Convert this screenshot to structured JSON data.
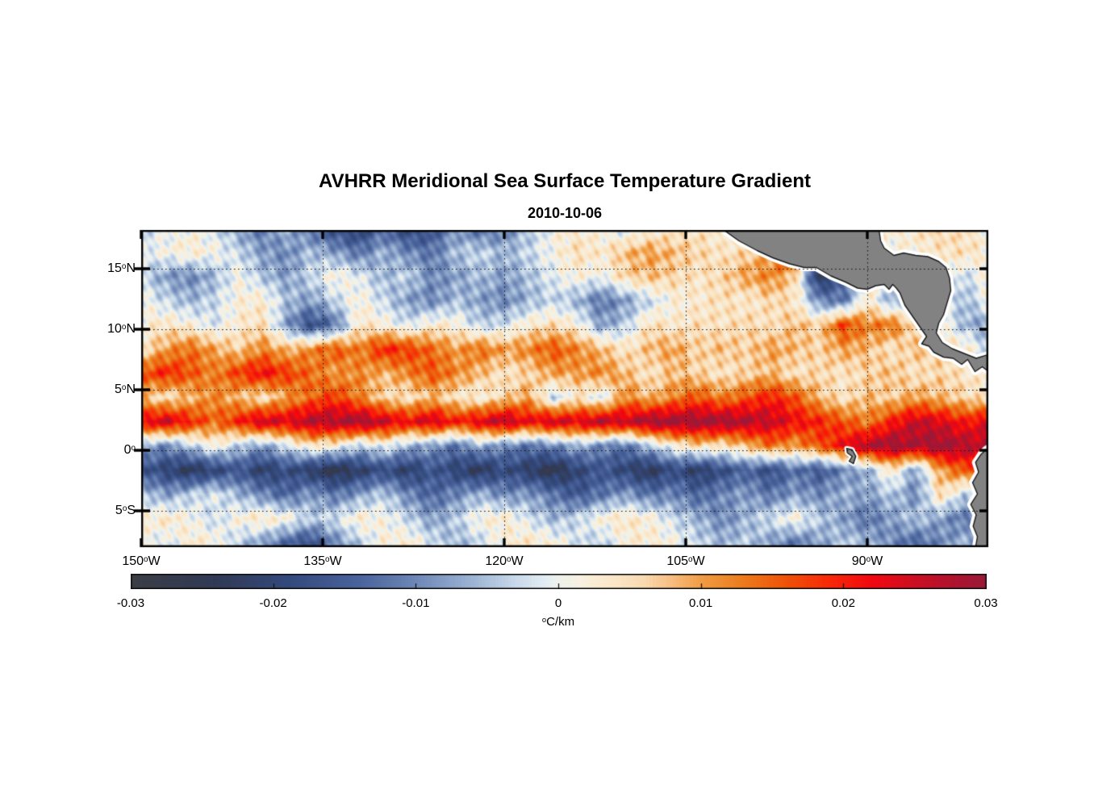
{
  "page": {
    "title": "AVHRR Meridional Sea Surface Temperature Gradient",
    "date": "2010-10-06"
  },
  "chart_data": {
    "type": "heatmap",
    "title": "AVHRR Meridional Sea Surface Temperature Gradient",
    "subtitle": "2010-10-06",
    "deg_sup": "o",
    "x_axis": {
      "ticks": [
        {
          "num": "150",
          "hem": "W",
          "lon": -150
        },
        {
          "num": "135",
          "hem": "W",
          "lon": -135
        },
        {
          "num": "120",
          "hem": "W",
          "lon": -120
        },
        {
          "num": "105",
          "hem": "W",
          "lon": -105
        },
        {
          "num": "90",
          "hem": "W",
          "lon": -90
        }
      ]
    },
    "y_axis": {
      "ticks": [
        {
          "num": "15",
          "hem": "N",
          "lat": 15
        },
        {
          "num": "10",
          "hem": "N",
          "lat": 10
        },
        {
          "num": "5",
          "hem": "N",
          "lat": 5
        },
        {
          "num": "0",
          "hem": "",
          "lat": 0
        },
        {
          "num": "5",
          "hem": "S",
          "lat": -5
        }
      ]
    },
    "lon_range": [
      -150,
      -80
    ],
    "lat_range": [
      18.2,
      -8.0
    ],
    "grid": {
      "lon_start": -150,
      "lon_step": 2,
      "lat_start": 18,
      "lat_step": -2,
      "unit": "C/km",
      "values": [
        [
          -0.003,
          -0.001,
          0.001,
          -0.002,
          -0.008,
          -0.012,
          -0.005,
          -0.013,
          -0.019,
          -0.021,
          -0.014,
          -0.02,
          -0.017,
          -0.009,
          -0.014,
          -0.011,
          -0.005,
          0.001,
          0.003,
          0.001,
          -0.003,
          0.002,
          0.003,
          0.004,
          0.002,
          0.001,
          0.002,
          0.001,
          0.002,
          0.001,
          0.003,
          0.002,
          0.004,
          0.006,
          0.004,
          0.002
        ],
        [
          -0.001,
          0.001,
          0.003,
          0.001,
          -0.003,
          -0.008,
          -0.01,
          -0.005,
          -0.008,
          -0.012,
          -0.006,
          -0.01,
          -0.012,
          -0.005,
          -0.003,
          -0.006,
          -0.003,
          0.001,
          0.005,
          0.003,
          0.008,
          0.01,
          0.008,
          0.006,
          0.004,
          0.006,
          0.01,
          0.028,
          -0.028,
          0.002,
          0.002,
          0.001,
          0.002,
          0.004,
          0.005,
          0.002
        ],
        [
          -0.003,
          -0.008,
          -0.01,
          -0.006,
          0.001,
          -0.005,
          -0.008,
          -0.003,
          0.002,
          -0.001,
          -0.006,
          -0.003,
          -0.01,
          -0.008,
          -0.005,
          -0.008,
          -0.005,
          -0.001,
          0.002,
          0.0,
          0.006,
          0.008,
          0.006,
          0.004,
          0.006,
          0.01,
          0.012,
          0.006,
          -0.024,
          -0.014,
          0.002,
          0.001,
          0.001,
          0.002,
          -0.003,
          0.002
        ],
        [
          0.001,
          -0.003,
          -0.006,
          -0.003,
          0.002,
          0.003,
          -0.005,
          -0.008,
          -0.003,
          0.002,
          -0.003,
          -0.008,
          -0.01,
          -0.005,
          -0.008,
          -0.01,
          -0.006,
          -0.003,
          -0.006,
          -0.012,
          -0.008,
          -0.003,
          0.002,
          0.003,
          0.005,
          0.003,
          0.006,
          0.004,
          -0.01,
          -0.012,
          0.004,
          -0.008,
          0.002,
          0.002,
          -0.006,
          0.001
        ],
        [
          0.002,
          0.004,
          0.002,
          -0.002,
          0.003,
          0.005,
          -0.008,
          -0.018,
          -0.012,
          0.004,
          0.002,
          -0.002,
          0.003,
          0.002,
          -0.004,
          -0.002,
          0.003,
          0.005,
          0.002,
          -0.008,
          -0.004,
          0.005,
          0.003,
          0.005,
          0.004,
          0.006,
          0.004,
          0.008,
          0.006,
          0.018,
          0.012,
          0.014,
          0.004,
          0.002,
          -0.006,
          -0.008
        ],
        [
          0.004,
          0.01,
          0.014,
          0.01,
          0.006,
          0.012,
          0.008,
          0.012,
          0.016,
          0.012,
          0.02,
          0.018,
          0.014,
          0.01,
          0.014,
          0.01,
          0.012,
          0.016,
          0.012,
          0.008,
          0.004,
          0.008,
          0.01,
          0.006,
          0.008,
          0.006,
          0.01,
          0.008,
          0.006,
          0.01,
          0.008,
          0.004,
          0.008,
          0.006,
          0.004,
          -0.004
        ],
        [
          0.016,
          0.02,
          0.016,
          0.012,
          0.018,
          0.022,
          0.018,
          0.014,
          0.01,
          0.012,
          0.008,
          0.012,
          0.016,
          0.012,
          0.008,
          0.004,
          0.006,
          0.01,
          0.01,
          0.012,
          0.008,
          0.004,
          0.008,
          0.006,
          0.004,
          0.006,
          0.008,
          0.004,
          0.006,
          0.004,
          0.006,
          0.008,
          0.004,
          0.006,
          0.004,
          0.002
        ],
        [
          0.008,
          0.004,
          0.008,
          0.012,
          0.008,
          0.004,
          0.01,
          0.014,
          0.018,
          0.012,
          0.006,
          0.004,
          0.008,
          0.004,
          0.002,
          0.006,
          0.01,
          -0.004,
          0.004,
          -0.002,
          0.012,
          0.008,
          0.012,
          0.016,
          0.012,
          0.016,
          0.02,
          0.016,
          0.008,
          0.004,
          0.008,
          0.006,
          0.01,
          0.008,
          0.006,
          0.004
        ],
        [
          0.022,
          0.026,
          0.02,
          0.014,
          0.02,
          0.026,
          0.024,
          0.028,
          0.028,
          0.03,
          0.026,
          0.022,
          0.026,
          0.02,
          0.024,
          0.028,
          0.022,
          0.026,
          0.024,
          0.028,
          0.026,
          0.03,
          0.03,
          0.03,
          0.03,
          0.028,
          0.026,
          0.022,
          0.02,
          0.016,
          0.012,
          0.02,
          0.026,
          0.024,
          0.02,
          0.024
        ],
        [
          -0.006,
          -0.01,
          -0.004,
          0.002,
          -0.004,
          -0.008,
          -0.002,
          0.004,
          0.002,
          -0.004,
          0.0,
          -0.006,
          -0.008,
          -0.012,
          -0.006,
          -0.01,
          -0.012,
          -0.01,
          -0.006,
          -0.01,
          -0.012,
          -0.004,
          0.002,
          0.006,
          0.004,
          0.008,
          0.014,
          0.01,
          0.016,
          0.022,
          0.028,
          0.03,
          0.028,
          0.03,
          0.028,
          0.026
        ],
        [
          -0.016,
          -0.02,
          -0.024,
          -0.02,
          -0.016,
          -0.022,
          -0.018,
          -0.022,
          -0.026,
          -0.022,
          -0.018,
          -0.022,
          -0.016,
          -0.02,
          -0.024,
          -0.018,
          -0.022,
          -0.026,
          -0.02,
          -0.016,
          -0.02,
          -0.024,
          -0.018,
          -0.022,
          -0.018,
          -0.014,
          -0.018,
          -0.012,
          -0.016,
          -0.01,
          -0.006,
          0.004,
          -0.008,
          0.01,
          0.016,
          0.012
        ],
        [
          -0.004,
          -0.008,
          -0.004,
          -0.001,
          -0.006,
          -0.01,
          -0.014,
          -0.008,
          -0.012,
          -0.008,
          -0.004,
          -0.01,
          -0.014,
          -0.01,
          -0.006,
          -0.01,
          -0.008,
          -0.012,
          -0.016,
          -0.012,
          -0.008,
          -0.012,
          -0.01,
          -0.014,
          -0.01,
          -0.008,
          -0.012,
          -0.008,
          -0.01,
          -0.006,
          -0.008,
          -0.004,
          -0.01,
          0.006,
          -0.004,
          0.008
        ],
        [
          0.002,
          0.004,
          0.001,
          -0.003,
          0.002,
          0.004,
          0.002,
          -0.004,
          -0.002,
          0.003,
          0.001,
          -0.003,
          -0.008,
          -0.004,
          0.002,
          0.003,
          -0.002,
          -0.006,
          -0.003,
          0.002,
          0.004,
          0.002,
          -0.003,
          -0.006,
          -0.01,
          -0.006,
          -0.002,
          0.002,
          -0.004,
          -0.008,
          -0.012,
          -0.008,
          -0.004,
          -0.008,
          -0.012,
          -0.006
        ],
        [
          0.001,
          -0.002,
          0.003,
          0.002,
          -0.004,
          -0.008,
          -0.014,
          -0.018,
          -0.01,
          -0.004,
          0.002,
          0.003,
          -0.002,
          -0.006,
          -0.003,
          0.002,
          0.004,
          0.002,
          -0.002,
          -0.004,
          0.002,
          0.003,
          0.001,
          -0.003,
          -0.006,
          -0.004,
          -0.008,
          -0.012,
          -0.008,
          -0.004,
          -0.006,
          -0.01,
          -0.014,
          -0.01,
          -0.006,
          -0.008
        ]
      ]
    },
    "colorbar": {
      "min": -0.03,
      "max": 0.03,
      "tick_values": [
        -0.03,
        -0.02,
        -0.01,
        0,
        0.01,
        0.02,
        0.03
      ],
      "tick_labels": [
        "-0.03",
        "-0.02",
        "-0.01",
        "0",
        "0.01",
        "0.02",
        "0.03"
      ],
      "unit_sup": "o",
      "unit_text": "C/km"
    },
    "colormap": [
      [
        -0.03,
        "#3a3e45"
      ],
      [
        -0.024,
        "#313a55"
      ],
      [
        -0.019,
        "#33497c"
      ],
      [
        -0.014,
        "#49639c"
      ],
      [
        -0.01,
        "#6e87b6"
      ],
      [
        -0.006,
        "#9db4d4"
      ],
      [
        -0.003,
        "#c8d9ea"
      ],
      [
        -0.001,
        "#e2ecf2"
      ],
      [
        0.0,
        "#eef2ec"
      ],
      [
        0.0015,
        "#f8f0e0"
      ],
      [
        0.004,
        "#fae6c6"
      ],
      [
        0.006,
        "#f8d9b0"
      ],
      [
        0.008,
        "#f6bc7e"
      ],
      [
        0.01,
        "#f09c44"
      ],
      [
        0.013,
        "#ec7a1c"
      ],
      [
        0.016,
        "#ee5108"
      ],
      [
        0.019,
        "#f82808"
      ],
      [
        0.022,
        "#f00810"
      ],
      [
        0.025,
        "#cc0f22"
      ],
      [
        0.028,
        "#ab1430"
      ],
      [
        0.03,
        "#991a38"
      ]
    ],
    "land_color": "#828282",
    "coast_halo_color": "#ffffff",
    "land_outline_color": "#1a1a1a",
    "grid_line_color": "#141414",
    "land_polygons": {
      "mexico_central_america": [
        [
          -102,
          18.3
        ],
        [
          -100.6,
          17.3
        ],
        [
          -99.1,
          16.5
        ],
        [
          -97.8,
          15.9
        ],
        [
          -96.4,
          15.4
        ],
        [
          -95.2,
          15.1
        ],
        [
          -94.2,
          15.1
        ],
        [
          -93.0,
          14.4
        ],
        [
          -91.8,
          13.9
        ],
        [
          -90.8,
          13.4
        ],
        [
          -90.0,
          13.3
        ],
        [
          -89.3,
          13.6
        ],
        [
          -88.6,
          13.7
        ],
        [
          -88.2,
          13.3
        ],
        [
          -87.9,
          13.7
        ],
        [
          -87.6,
          13.4
        ],
        [
          -87.3,
          13.0
        ],
        [
          -86.9,
          12.0
        ],
        [
          -86.0,
          10.7
        ],
        [
          -85.1,
          9.4
        ],
        [
          -85.5,
          8.8
        ],
        [
          -84.9,
          8.6
        ],
        [
          -84.5,
          8.1
        ],
        [
          -83.7,
          7.7
        ],
        [
          -82.9,
          7.6
        ],
        [
          -82.2,
          7.1
        ],
        [
          -81.7,
          7.5
        ],
        [
          -81.1,
          6.5
        ],
        [
          -80.5,
          6.9
        ],
        [
          -79.7,
          6.3
        ],
        [
          -79.7,
          8.0
        ],
        [
          -81.0,
          7.6
        ],
        [
          -82.0,
          8.0
        ],
        [
          -83.0,
          8.4
        ],
        [
          -83.8,
          8.9
        ],
        [
          -84.3,
          9.7
        ],
        [
          -84.1,
          10.5
        ],
        [
          -83.7,
          11.2
        ],
        [
          -83.4,
          12.2
        ],
        [
          -83.1,
          13.2
        ],
        [
          -83.2,
          14.2
        ],
        [
          -83.5,
          15.1
        ],
        [
          -84.1,
          15.6
        ],
        [
          -85.0,
          16.0
        ],
        [
          -86.0,
          16.1
        ],
        [
          -87.0,
          16.3
        ],
        [
          -87.8,
          16.1
        ],
        [
          -88.2,
          16.4
        ],
        [
          -88.6,
          16.7
        ],
        [
          -88.9,
          17.3
        ],
        [
          -89.0,
          18.0
        ],
        [
          -89.05,
          18.3
        ]
      ],
      "south_america": [
        [
          -79.7,
          0.4
        ],
        [
          -80.2,
          0.05
        ],
        [
          -80.6,
          -0.33
        ],
        [
          -81.05,
          -1.0
        ],
        [
          -80.8,
          -1.8
        ],
        [
          -81.3,
          -2.67
        ],
        [
          -80.9,
          -3.6
        ],
        [
          -81.45,
          -4.47
        ],
        [
          -81.0,
          -5.33
        ],
        [
          -81.25,
          -6.27
        ],
        [
          -80.9,
          -7.13
        ],
        [
          -81.05,
          -8.0
        ],
        [
          -81.0,
          -8.4
        ],
        [
          -79.7,
          -8.4
        ]
      ],
      "galapagos": [
        [
          -91.7,
          0.15
        ],
        [
          -91.25,
          0.05
        ],
        [
          -90.95,
          -0.5
        ],
        [
          -91.15,
          -1.1
        ],
        [
          -91.5,
          -0.9
        ],
        [
          -91.25,
          -0.5
        ],
        [
          -91.65,
          -0.2
        ]
      ]
    }
  }
}
